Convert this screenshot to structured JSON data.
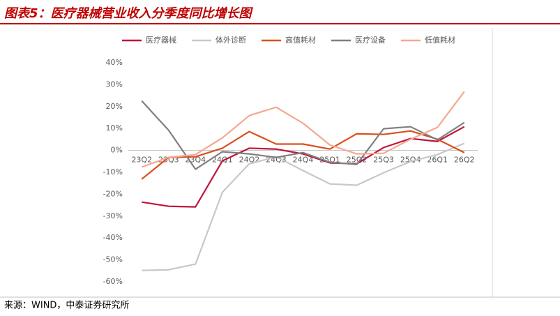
{
  "chart_data": {
    "type": "line",
    "title": "图表5：医疗器械营业收入分季度同比增长图",
    "source": "来源：WIND，中泰证券研究所",
    "categories": [
      "23Q2",
      "23Q3",
      "23Q4",
      "24Q1",
      "24Q2",
      "24Q3",
      "24Q4",
      "25Q1",
      "25Q2",
      "25Q3",
      "25Q4",
      "26Q1",
      "26Q2"
    ],
    "series": [
      {
        "name": "医疗器械",
        "color": "#c0143c",
        "values": [
          -23.6,
          -25.5,
          -25.8,
          -4.8,
          1.0,
          0.6,
          -1.6,
          -5.7,
          -6.1,
          1.3,
          5.4,
          4.1,
          10.8
        ]
      },
      {
        "name": "体外诊断",
        "color": "#c8c8c8",
        "values": [
          -54.8,
          -54.5,
          -51.9,
          -19.1,
          -6.1,
          -2.9,
          -9.2,
          -15.3,
          -15.9,
          -10.2,
          -5.1,
          -1.9,
          3.2
        ]
      },
      {
        "name": "高值耗材",
        "color": "#d9501e",
        "values": [
          -13.1,
          -3.2,
          -2.9,
          1.0,
          8.6,
          2.9,
          2.9,
          0.6,
          7.6,
          7.3,
          8.9,
          5.1,
          -1.0
        ]
      },
      {
        "name": "医疗设备",
        "color": "#808080",
        "values": [
          22.6,
          9.2,
          -8.6,
          -0.6,
          -1.6,
          -3.2,
          -1.0,
          -5.4,
          -6.4,
          9.9,
          10.8,
          4.8,
          12.7
        ]
      },
      {
        "name": "低值耗材",
        "color": "#f4a890",
        "values": [
          -7.6,
          -3.2,
          -1.9,
          5.7,
          15.9,
          19.7,
          12.4,
          2.5,
          -1.6,
          -1.3,
          5.1,
          10.5,
          26.8
        ]
      }
    ],
    "ylim": [
      -60,
      40
    ],
    "yticks": [
      {
        "value": 40,
        "label": "40%"
      },
      {
        "value": 30,
        "label": "30%"
      },
      {
        "value": 20,
        "label": "20%"
      },
      {
        "value": 10,
        "label": "10%"
      },
      {
        "value": 0,
        "label": "0%"
      },
      {
        "value": -10,
        "label": "-10%"
      },
      {
        "value": -20,
        "label": "-20%"
      },
      {
        "value": -30,
        "label": "-30%"
      },
      {
        "value": -40,
        "label": "-40%"
      },
      {
        "value": -50,
        "label": "-50%"
      },
      {
        "value": -60,
        "label": "-60%"
      }
    ]
  }
}
